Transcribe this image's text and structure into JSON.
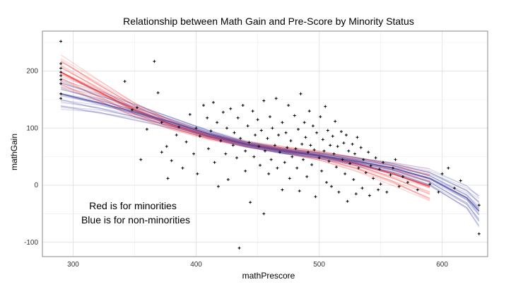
{
  "chart_data": {
    "type": "scatter",
    "title": "Relationship between Math Gain and Pre-Score by Minority Status",
    "xlabel": "mathPrescore",
    "ylabel": "mathGain",
    "xlim": [
      275,
      637
    ],
    "ylim": [
      -125,
      270
    ],
    "x_ticks": [
      300,
      400,
      500,
      600
    ],
    "y_ticks": [
      -100,
      0,
      100,
      200
    ],
    "grid": true,
    "annotations": [
      "Red is for minorities",
      "Blue is for non-minorities"
    ],
    "colors": {
      "minority": "#ff2b2b",
      "nonminority": "#4a4aa8",
      "points": "#000000",
      "grid": "#e3e3e3",
      "frame": "#8a8a8a"
    },
    "smooth": [
      {
        "group": "minorities",
        "color": "#ff2b2b",
        "x": [
          290,
          320,
          350,
          380,
          410,
          440,
          470,
          500,
          530,
          560,
          590
        ],
        "y": [
          198,
          165,
          132,
          106,
          86,
          72,
          62,
          52,
          38,
          20,
          -2
        ]
      },
      {
        "group": "non-minorities",
        "color": "#4a4aa8",
        "x": [
          290,
          320,
          350,
          380,
          410,
          440,
          470,
          500,
          530,
          560,
          590,
          620,
          630
        ],
        "y": [
          160,
          145,
          128,
          110,
          90,
          72,
          60,
          52,
          42,
          30,
          12,
          -22,
          -45
        ]
      }
    ],
    "points": [
      [
        290,
        252
      ],
      [
        290,
        213
      ],
      [
        290,
        205
      ],
      [
        290,
        198
      ],
      [
        290,
        192
      ],
      [
        290,
        185
      ],
      [
        290,
        178
      ],
      [
        290,
        160
      ],
      [
        290,
        152
      ],
      [
        342,
        182
      ],
      [
        348,
        132
      ],
      [
        352,
        136
      ],
      [
        355,
        45
      ],
      [
        360,
        98
      ],
      [
        366,
        217
      ],
      [
        369,
        162
      ],
      [
        372,
        110
      ],
      [
        372,
        58
      ],
      [
        376,
        68
      ],
      [
        377,
        12
      ],
      [
        380,
        43
      ],
      [
        384,
        88
      ],
      [
        386,
        102
      ],
      [
        389,
        30
      ],
      [
        392,
        76
      ],
      [
        395,
        124
      ],
      [
        398,
        55
      ],
      [
        400,
        100
      ],
      [
        401,
        20
      ],
      [
        403,
        86
      ],
      [
        406,
        140
      ],
      [
        409,
        118
      ],
      [
        410,
        64
      ],
      [
        412,
        95
      ],
      [
        414,
        145
      ],
      [
        415,
        40
      ],
      [
        417,
        110
      ],
      [
        418,
        -2
      ],
      [
        420,
        78
      ],
      [
        422,
        128
      ],
      [
        424,
        55
      ],
      [
        425,
        100
      ],
      [
        426,
        10
      ],
      [
        428,
        134
      ],
      [
        430,
        70
      ],
      [
        431,
        92
      ],
      [
        433,
        48
      ],
      [
        434,
        118
      ],
      [
        435,
        -110
      ],
      [
        436,
        82
      ],
      [
        438,
        140
      ],
      [
        440,
        60
      ],
      [
        440,
        25
      ],
      [
        442,
        104
      ],
      [
        443,
        75
      ],
      [
        444,
        -30
      ],
      [
        446,
        130
      ],
      [
        447,
        50
      ],
      [
        448,
        88
      ],
      [
        450,
        115
      ],
      [
        451,
        68
      ],
      [
        452,
        35
      ],
      [
        453,
        96
      ],
      [
        455,
        148
      ],
      [
        455,
        -50
      ],
      [
        456,
        60
      ],
      [
        458,
        82
      ],
      [
        459,
        20
      ],
      [
        460,
        120
      ],
      [
        461,
        45
      ],
      [
        462,
        100
      ],
      [
        464,
        70
      ],
      [
        465,
        152
      ],
      [
        466,
        30
      ],
      [
        467,
        88
      ],
      [
        468,
        58
      ],
      [
        470,
        110
      ],
      [
        470,
        -8
      ],
      [
        472,
        40
      ],
      [
        473,
        92
      ],
      [
        474,
        66
      ],
      [
        475,
        140
      ],
      [
        476,
        12
      ],
      [
        477,
        78
      ],
      [
        478,
        50
      ],
      [
        480,
        122
      ],
      [
        481,
        64
      ],
      [
        482,
        30
      ],
      [
        483,
        98
      ],
      [
        484,
        -10
      ],
      [
        485,
        160
      ],
      [
        486,
        72
      ],
      [
        487,
        45
      ],
      [
        488,
        110
      ],
      [
        489,
        84
      ],
      [
        490,
        15
      ],
      [
        491,
        58
      ],
      [
        492,
        130
      ],
      [
        493,
        70
      ],
      [
        494,
        36
      ],
      [
        495,
        104
      ],
      [
        496,
        62
      ],
      [
        497,
        -20
      ],
      [
        498,
        92
      ],
      [
        500,
        48
      ],
      [
        501,
        120
      ],
      [
        502,
        25
      ],
      [
        503,
        80
      ],
      [
        504,
        60
      ],
      [
        505,
        138
      ],
      [
        506,
        5
      ],
      [
        507,
        96
      ],
      [
        508,
        42
      ],
      [
        509,
        70
      ],
      [
        510,
        -2
      ],
      [
        511,
        86
      ],
      [
        512,
        55
      ],
      [
        513,
        112
      ],
      [
        514,
        32
      ],
      [
        515,
        68
      ],
      [
        516,
        -12
      ],
      [
        518,
        94
      ],
      [
        519,
        45
      ],
      [
        520,
        74
      ],
      [
        521,
        20
      ],
      [
        522,
        88
      ],
      [
        523,
        -28
      ],
      [
        524,
        60
      ],
      [
        525,
        38
      ],
      [
        527,
        72
      ],
      [
        528,
        10
      ],
      [
        529,
        55
      ],
      [
        530,
        -15
      ],
      [
        531,
        84
      ],
      [
        532,
        30
      ],
      [
        534,
        66
      ],
      [
        535,
        -5
      ],
      [
        536,
        45
      ],
      [
        538,
        22
      ],
      [
        540,
        58
      ],
      [
        541,
        -18
      ],
      [
        542,
        34
      ],
      [
        544,
        12
      ],
      [
        546,
        48
      ],
      [
        548,
        -8
      ],
      [
        549,
        28
      ],
      [
        550,
        2
      ],
      [
        552,
        40
      ],
      [
        555,
        -12
      ],
      [
        558,
        18
      ],
      [
        560,
        30
      ],
      [
        562,
        45
      ],
      [
        565,
        -2
      ],
      [
        568,
        15
      ],
      [
        572,
        5
      ],
      [
        580,
        -8
      ],
      [
        590,
        2
      ],
      [
        597,
        -12
      ],
      [
        600,
        20
      ],
      [
        605,
        30
      ],
      [
        610,
        -5
      ],
      [
        615,
        8
      ],
      [
        630,
        -35
      ],
      [
        630,
        -85
      ]
    ]
  }
}
